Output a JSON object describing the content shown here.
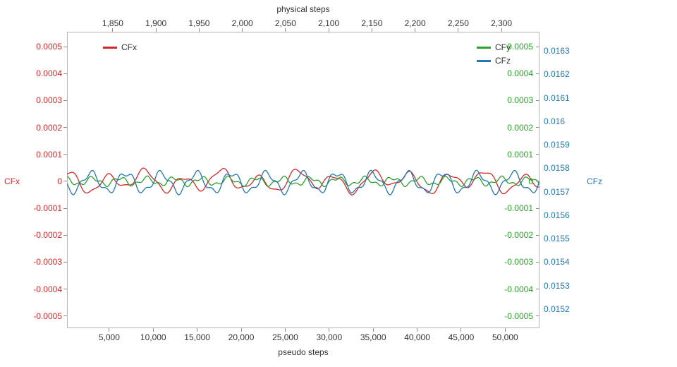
{
  "chart_data": {
    "type": "line",
    "title": "",
    "background": "#ffffff",
    "frame_color": "#b4b4b4",
    "grid": false,
    "legend_position": "top-left and top-right, inside plot",
    "axes": {
      "top": {
        "label": "physical steps",
        "color": "#333333",
        "domain": [
          1797,
          2344
        ],
        "ticks": [
          1850,
          1900,
          1950,
          2000,
          2050,
          2100,
          2150,
          2200,
          2250,
          2300
        ],
        "tick_labels": [
          "1,850",
          "1,900",
          "1,950",
          "2,000",
          "2,050",
          "2,100",
          "2,150",
          "2,200",
          "2,250",
          "2,300"
        ]
      },
      "bottom": {
        "label": "pseudo steps",
        "color": "#333333",
        "domain": [
          200,
          53900
        ],
        "ticks": [
          5000,
          10000,
          15000,
          20000,
          25000,
          30000,
          35000,
          40000,
          45000,
          50000
        ],
        "tick_labels": [
          "5,000",
          "10,000",
          "15,000",
          "20,000",
          "25,000",
          "30,000",
          "35,000",
          "40,000",
          "45,000",
          "50,000"
        ]
      },
      "left": {
        "label": "CFx",
        "color": "#d62728",
        "domain": [
          -0.000545,
          0.000555
        ],
        "ticks": [
          0.0005,
          0.0004,
          0.0003,
          0.0002,
          0.0001,
          0,
          -0.0001,
          -0.0002,
          -0.0003,
          -0.0004,
          -0.0005
        ],
        "tick_labels": [
          "0.0005",
          "0.0004",
          "0.0003",
          "0.0002",
          "0.0001",
          "0",
          "-0.0001",
          "-0.0002",
          "-0.0003",
          "-0.0004",
          "-0.0005"
        ]
      },
      "right_green": {
        "color": "#2ca02c",
        "domain": [
          -0.000545,
          0.000555
        ],
        "ticks": [
          0.0005,
          0.0004,
          0.0003,
          0.0002,
          0.0001,
          0,
          -0.0001,
          -0.0002,
          -0.0003,
          -0.0004,
          -0.0005
        ],
        "tick_labels": [
          "0.0005",
          "0.0004",
          "0.0003",
          "0.0002",
          "0.0001",
          "0",
          "-0.0001",
          "-0.0002",
          "-0.0003",
          "-0.0004",
          "-0.0005"
        ]
      },
      "right_blue": {
        "label": "CFz",
        "color": "#1f77b4",
        "domain": [
          0.015119,
          0.016381
        ],
        "ticks": [
          0.0163,
          0.0162,
          0.0161,
          0.016,
          0.0159,
          0.0158,
          0.0157,
          0.0156,
          0.0155,
          0.0154,
          0.0153,
          0.0152
        ],
        "tick_labels": [
          "0.0163",
          "0.0162",
          "0.0161",
          "0.016",
          "0.0159",
          "0.0158",
          "0.0157",
          "0.0156",
          "0.0155",
          "0.0154",
          "0.0153",
          "0.0152"
        ]
      }
    },
    "legend": [
      {
        "label": "CFx",
        "color": "#d62728"
      },
      {
        "label": "CFy",
        "color": "#2ca02c"
      },
      {
        "label": "CFz",
        "color": "#1f77b4"
      }
    ],
    "series": [
      {
        "name": "CFx",
        "axis": "left",
        "color": "#d62728",
        "center": 0,
        "components": [
          {
            "amp": 3e-05,
            "period": 4300,
            "phase": 0.8
          },
          {
            "amp": 1.5e-05,
            "period": 9500,
            "phase": 2.4
          },
          {
            "amp": 8e-06,
            "period": 1900,
            "phase": 4.0
          }
        ]
      },
      {
        "name": "CFy",
        "axis": "left",
        "color": "#2ca02c",
        "center": 0,
        "components": [
          {
            "amp": 1.3e-05,
            "period": 3100,
            "phase": 1.6
          },
          {
            "amp": 7e-06,
            "period": 1300,
            "phase": 0.4
          }
        ]
      },
      {
        "name": "CFz",
        "axis": "right_blue",
        "color": "#1f77b4",
        "center": 0.01574,
        "components": [
          {
            "amp": 4e-05,
            "period": 4000,
            "phase": 3.3
          },
          {
            "amp": 1.3e-05,
            "period": 1500,
            "phase": 0.9
          }
        ]
      }
    ]
  }
}
